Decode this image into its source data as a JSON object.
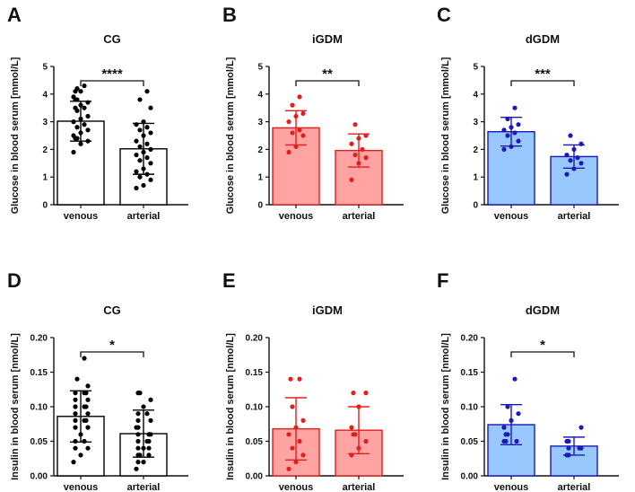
{
  "chart_data": [
    {
      "panel": "A",
      "type": "bar",
      "title": "CG",
      "ylabel": "Glucose in blood serum [mmol/L]",
      "ylim": [
        0,
        5
      ],
      "yticks": [
        "0",
        "1",
        "2",
        "3",
        "4",
        "5"
      ],
      "categories": [
        "venous",
        "arterial"
      ],
      "values": [
        3.02,
        2.02
      ],
      "sd": [
        0.72,
        0.92
      ],
      "points": [
        [
          4.3,
          4.2,
          4.1,
          4.1,
          3.9,
          3.8,
          3.8,
          3.7,
          3.6,
          3.5,
          3.5,
          3.4,
          3.2,
          3.1,
          3.0,
          2.9,
          2.8,
          2.7,
          2.6,
          2.5,
          2.4,
          2.4,
          2.3,
          2.2,
          1.9
        ],
        [
          4.1,
          3.8,
          3.5,
          3.0,
          2.9,
          2.8,
          2.7,
          2.6,
          2.5,
          2.3,
          2.2,
          2.1,
          2.0,
          1.9,
          1.8,
          1.7,
          1.6,
          1.5,
          1.3,
          1.2,
          1.1,
          1.0,
          0.9,
          0.7,
          0.6
        ]
      ],
      "significance": "****",
      "colors": {
        "fill": "#ffffff",
        "stroke": "#000000",
        "dot": "#000000"
      }
    },
    {
      "panel": "B",
      "type": "bar",
      "title": "iGDM",
      "ylabel": "Glucose in blood serum [mmol/L]",
      "ylim": [
        0,
        5
      ],
      "yticks": [
        "0",
        "1",
        "2",
        "3",
        "4",
        "5"
      ],
      "categories": [
        "venous",
        "arterial"
      ],
      "values": [
        2.78,
        1.96
      ],
      "sd": [
        0.62,
        0.6
      ],
      "points": [
        [
          3.9,
          3.6,
          3.3,
          3.2,
          3.0,
          2.7,
          2.6,
          2.5,
          2.1,
          1.9
        ],
        [
          2.9,
          2.5,
          2.4,
          2.2,
          2.0,
          1.8,
          1.7,
          1.5,
          0.9
        ]
      ],
      "significance": "**",
      "colors": {
        "fill": "#ffa3a3",
        "stroke": "#e0201c",
        "dot": "#e0201c"
      }
    },
    {
      "panel": "C",
      "type": "bar",
      "title": "dGDM",
      "ylabel": "Glucose in blood serum [mmol/L]",
      "ylim": [
        0,
        5
      ],
      "yticks": [
        "0",
        "1",
        "2",
        "3",
        "4",
        "5"
      ],
      "categories": [
        "venous",
        "arterial"
      ],
      "values": [
        2.64,
        1.74
      ],
      "sd": [
        0.52,
        0.42
      ],
      "points": [
        [
          3.5,
          3.1,
          2.9,
          2.8,
          2.7,
          2.6,
          2.5,
          2.3,
          2.1,
          2.0
        ],
        [
          2.5,
          2.2,
          2.0,
          1.8,
          1.7,
          1.6,
          1.5,
          1.3,
          1.1
        ]
      ],
      "significance": "***",
      "colors": {
        "fill": "#99c8ff",
        "stroke": "#1a1ab8",
        "dot": "#1a1ab8"
      }
    },
    {
      "panel": "D",
      "type": "bar",
      "title": "CG",
      "ylabel": "Insulin in blood serum [nmol/L]",
      "ylim": [
        0,
        0.2
      ],
      "yticks": [
        "0.00",
        "0.05",
        "0.10",
        "0.15",
        "0.20"
      ],
      "categories": [
        "venous",
        "arterial"
      ],
      "values": [
        0.086,
        0.061
      ],
      "sd": [
        0.037,
        0.034
      ],
      "points": [
        [
          0.17,
          0.14,
          0.13,
          0.12,
          0.12,
          0.12,
          0.11,
          0.11,
          0.1,
          0.1,
          0.1,
          0.09,
          0.09,
          0.08,
          0.08,
          0.08,
          0.07,
          0.07,
          0.06,
          0.05,
          0.05,
          0.04,
          0.04,
          0.03,
          0.02
        ],
        [
          0.12,
          0.12,
          0.11,
          0.1,
          0.09,
          0.09,
          0.08,
          0.08,
          0.07,
          0.07,
          0.06,
          0.06,
          0.06,
          0.05,
          0.05,
          0.05,
          0.04,
          0.04,
          0.04,
          0.03,
          0.03,
          0.03,
          0.02,
          0.02,
          0.01
        ]
      ],
      "significance": "*",
      "colors": {
        "fill": "#ffffff",
        "stroke": "#000000",
        "dot": "#000000"
      }
    },
    {
      "panel": "E",
      "type": "bar",
      "title": "iGDM",
      "ylabel": "Insulin in blood serum [nmol/L]",
      "ylim": [
        0,
        0.2
      ],
      "yticks": [
        "0.00",
        "0.05",
        "0.10",
        "0.15",
        "0.20"
      ],
      "categories": [
        "venous",
        "arterial"
      ],
      "values": [
        0.068,
        0.066
      ],
      "sd": [
        0.045,
        0.034
      ],
      "points": [
        [
          0.14,
          0.14,
          0.1,
          0.08,
          0.07,
          0.06,
          0.05,
          0.04,
          0.03,
          0.02,
          0.01
        ],
        [
          0.12,
          0.12,
          0.1,
          0.07,
          0.06,
          0.06,
          0.05,
          0.04,
          0.03
        ]
      ],
      "significance": "",
      "colors": {
        "fill": "#ffa3a3",
        "stroke": "#e0201c",
        "dot": "#e0201c"
      }
    },
    {
      "panel": "F",
      "type": "bar",
      "title": "dGDM",
      "ylabel": "Insulin in blood serum [nmol/L]",
      "ylim": [
        0,
        0.2
      ],
      "yticks": [
        "0.00",
        "0.05",
        "0.10",
        "0.15",
        "0.20"
      ],
      "categories": [
        "venous",
        "arterial"
      ],
      "values": [
        0.074,
        0.043
      ],
      "sd": [
        0.029,
        0.013
      ],
      "points": [
        [
          0.14,
          0.1,
          0.09,
          0.08,
          0.07,
          0.06,
          0.06,
          0.05,
          0.05,
          0.05
        ],
        [
          0.07,
          0.05,
          0.05,
          0.04,
          0.04,
          0.04,
          0.03,
          0.03
        ]
      ],
      "significance": "*",
      "colors": {
        "fill": "#99c8ff",
        "stroke": "#1a1ab8",
        "dot": "#1a1ab8"
      }
    }
  ]
}
